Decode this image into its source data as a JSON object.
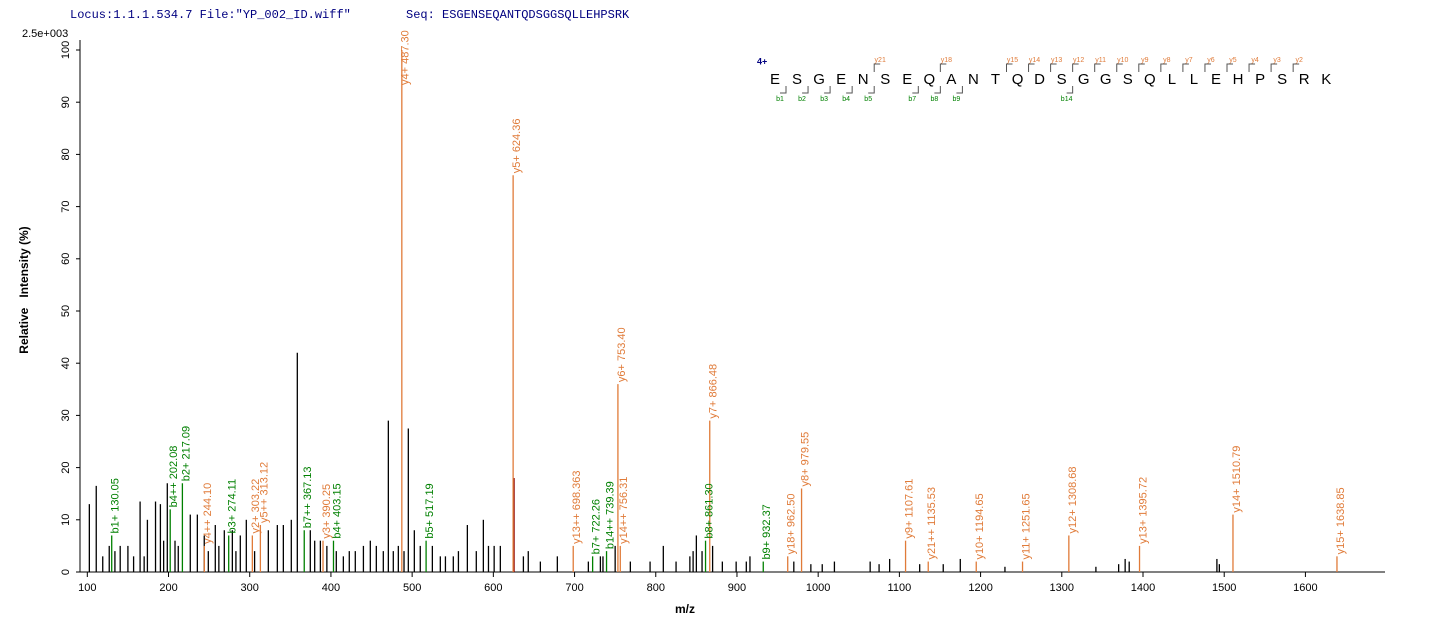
{
  "header": {
    "locus": "Locus:1.1.1.534.7 File:\"YP_002_ID.wiff\"",
    "seq": "Seq: ESGENSEQANTQDSGGSQLLEHPSRK"
  },
  "sequence": {
    "charge": "4+",
    "residues": [
      "E",
      "S",
      "G",
      "E",
      "N",
      "S",
      "E",
      "Q",
      "A",
      "N",
      "T",
      "Q",
      "D",
      "S",
      "G",
      "G",
      "S",
      "Q",
      "L",
      "L",
      "E",
      "H",
      "P",
      "S",
      "R",
      "K"
    ],
    "y_labels": [
      null,
      null,
      null,
      null,
      "y21",
      null,
      null,
      "y18",
      null,
      null,
      "y15",
      "y14",
      "y13",
      "y12",
      "y11",
      "y10",
      "y9",
      "y8",
      "y7",
      "y6",
      "y5",
      "y4",
      "y3",
      "y2",
      null
    ],
    "b_labels": [
      "b1",
      "b2",
      "b3",
      "b4",
      "b5",
      null,
      "b7",
      "b8",
      "b9",
      null,
      null,
      null,
      null,
      "b14",
      null,
      null,
      null,
      null,
      null,
      null,
      null,
      null,
      null,
      null,
      null
    ]
  },
  "chart_data": {
    "type": "stem",
    "scale_label": "2.5e+003",
    "x_label": "m/z",
    "y_label": "Relative   Intensity (%)",
    "xlim": [
      91,
      1698
    ],
    "ylim": [
      0,
      100
    ],
    "xticks": [
      100,
      200,
      300,
      400,
      500,
      600,
      700,
      800,
      900,
      1000,
      1100,
      1200,
      1300,
      1400,
      1500,
      1600
    ],
    "yticks": [
      0,
      10,
      20,
      30,
      40,
      50,
      60,
      70,
      80,
      90,
      100
    ],
    "series": [
      {
        "color": "#000000",
        "x": [
          102.5,
          111,
          119,
          127,
          134,
          140.5,
          150,
          157,
          165,
          170,
          174,
          184,
          190,
          194,
          198.5,
          208,
          212,
          226.8,
          235.5,
          244,
          249,
          257.6,
          262,
          268.7,
          278.6,
          283,
          288.4,
          295.8,
          306,
          322.9,
          334,
          341.4,
          351.2,
          358.6,
          374.6,
          380,
          387,
          395,
          406.6,
          415.3,
          422.6,
          430,
          440,
          448.5,
          455.9,
          464.5,
          470.7,
          476.8,
          483,
          490,
          495.3,
          502.7,
          510,
          524.9,
          534.7,
          541,
          550.7,
          557,
          568,
          579,
          587.7,
          594,
          601,
          608.6,
          637,
          643,
          657.9,
          678.8,
          717,
          731.8,
          735,
          750,
          768.7,
          793,
          809.3,
          825,
          842,
          846,
          850,
          857,
          870,
          882,
          899,
          911.5,
          916,
          970,
          991,
          1005,
          1020,
          1064,
          1075,
          1088,
          1125,
          1154,
          1175,
          1230,
          1342,
          1370,
          1378,
          1383,
          1491,
          1494
        ],
        "values": [
          13,
          16.5,
          3,
          5,
          4,
          5,
          5,
          3,
          13.5,
          3,
          10,
          13.5,
          13,
          6,
          17,
          6,
          5,
          11,
          11,
          7,
          4,
          9,
          5,
          8,
          8,
          4,
          7,
          10,
          4,
          8,
          9,
          9,
          10,
          42,
          8,
          6,
          6,
          5,
          4,
          3,
          4,
          4,
          5,
          6,
          5,
          4,
          29,
          4,
          5,
          4,
          27.5,
          8,
          5,
          5,
          3,
          3,
          3,
          4,
          9,
          4,
          10,
          5,
          5,
          5,
          3,
          4,
          2,
          3,
          2,
          3,
          3,
          5,
          2,
          2,
          5,
          2,
          3,
          4,
          7,
          4,
          5,
          2,
          2,
          2,
          3,
          2,
          1.5,
          1.5,
          2,
          2,
          1.5,
          2.5,
          1.5,
          1.5,
          2.5,
          1,
          1,
          1.5,
          2.5,
          2,
          2.5,
          1.5
        ]
      },
      {
        "color": "#8b0000",
        "x": [
          625.5
        ],
        "values": [
          18
        ]
      },
      {
        "color": "#e07b39",
        "x": [
          244.1,
          303.22,
          313.12,
          390.25,
          487.3,
          624.36,
          698.363,
          753.4,
          756.31,
          866.48,
          962.5,
          979.55,
          1107.61,
          1135.53,
          1194.65,
          1251.65,
          1308.68,
          1395.72,
          1510.79,
          1638.85
        ],
        "values": [
          5,
          7,
          9,
          6,
          100,
          76,
          5,
          36,
          5,
          29,
          3,
          16,
          6,
          2,
          2,
          2,
          7,
          5,
          11,
          3
        ],
        "peak_labels": [
          "y4++ 244.10",
          "y2+ 303.22",
          "y5++ 313.12",
          "y3+ 390.25",
          "y4+ 487.30",
          "y5+ 624.36",
          "y13++ 698.363",
          "y6+ 753.40",
          "y14++ 756.31",
          "y7+ 866.48",
          "y18+ 962.50",
          "y8+ 979.55",
          "y9+ 1107.61",
          "y21++ 1135.53",
          "y10+ 1194.65",
          "y11+ 1251.65",
          "y12+ 1308.68",
          "y13+ 1395.72",
          "y14+ 1510.79",
          "y15+ 1638.85"
        ]
      },
      {
        "color": "#008000",
        "x": [
          130.05,
          202.08,
          217.09,
          274.11,
          367.13,
          403.15,
          517.19,
          722.26,
          739.39,
          861.3,
          932.37
        ],
        "values": [
          7,
          12,
          17,
          7,
          8,
          6,
          6,
          3,
          4,
          6,
          2
        ],
        "peak_labels": [
          "b1+ 130.05",
          "b4++ 202.08",
          "b2+ 217.09",
          "b3+ 274.11",
          "b7++ 367.13",
          "b4+ 403.15",
          "b5+ 517.19",
          "b7+ 722.26",
          "b14++ 739.39",
          "b8+ 861.30",
          "b9+ 932.37"
        ]
      }
    ]
  }
}
